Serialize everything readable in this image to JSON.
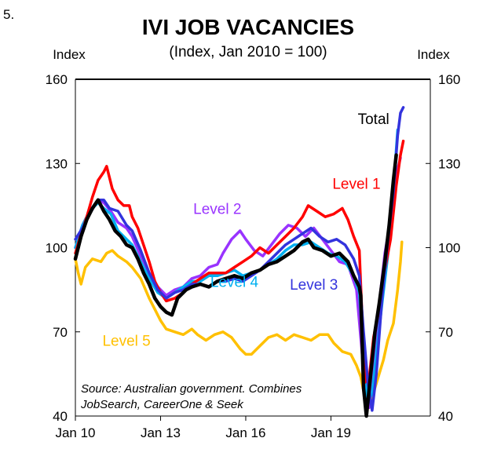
{
  "figure_number": "5.",
  "chart_data": {
    "type": "line",
    "title": "IVI JOB VACANCIES",
    "subtitle": "(Index, Jan 2010 = 100)",
    "ylabel_left": "Index",
    "ylabel_right": "Index",
    "ylim": [
      40,
      160
    ],
    "yticks": [
      40,
      70,
      100,
      130,
      160
    ],
    "ytick_labels": [
      "40",
      "70",
      "100",
      "130",
      "160"
    ],
    "xlim": [
      2010,
      2022.5
    ],
    "xticks": [
      2010,
      2013,
      2016,
      2019
    ],
    "xtick_labels": [
      "Jan 10",
      "Jan 13",
      "Jan 16",
      "Jan 19"
    ],
    "grid": false,
    "source": [
      "Source: Australian government. Combines",
      "JobSearch, CareerOne & Seek"
    ],
    "series": [
      {
        "name": "Level 5",
        "color": "#FFC000",
        "label": "Level 5",
        "points": [
          [
            2010.0,
            96
          ],
          [
            2010.1,
            91
          ],
          [
            2010.2,
            87
          ],
          [
            2010.35,
            93
          ],
          [
            2010.6,
            96
          ],
          [
            2010.9,
            95
          ],
          [
            2011.1,
            98
          ],
          [
            2011.3,
            99
          ],
          [
            2011.5,
            97
          ],
          [
            2011.8,
            95
          ],
          [
            2012.0,
            93
          ],
          [
            2012.3,
            89
          ],
          [
            2012.6,
            82
          ],
          [
            2012.8,
            78
          ],
          [
            2013.0,
            74
          ],
          [
            2013.2,
            71
          ],
          [
            2013.5,
            70
          ],
          [
            2013.8,
            69
          ],
          [
            2014.1,
            71
          ],
          [
            2014.3,
            69
          ],
          [
            2014.6,
            67
          ],
          [
            2014.9,
            69
          ],
          [
            2015.2,
            70
          ],
          [
            2015.5,
            68
          ],
          [
            2015.8,
            64
          ],
          [
            2016.0,
            62
          ],
          [
            2016.2,
            62
          ],
          [
            2016.5,
            65
          ],
          [
            2016.8,
            68
          ],
          [
            2017.1,
            69
          ],
          [
            2017.4,
            67
          ],
          [
            2017.7,
            69
          ],
          [
            2018.0,
            68
          ],
          [
            2018.3,
            67
          ],
          [
            2018.6,
            69
          ],
          [
            2018.9,
            69
          ],
          [
            2019.1,
            66
          ],
          [
            2019.4,
            63
          ],
          [
            2019.7,
            62
          ],
          [
            2019.9,
            58
          ],
          [
            2020.05,
            54
          ],
          [
            2020.15,
            49
          ],
          [
            2020.25,
            44
          ],
          [
            2020.4,
            45
          ],
          [
            2020.55,
            50
          ],
          [
            2020.7,
            55
          ],
          [
            2020.85,
            60
          ],
          [
            2021.0,
            67
          ],
          [
            2021.2,
            73
          ],
          [
            2021.35,
            85
          ],
          [
            2021.45,
            95
          ],
          [
            2021.5,
            102
          ]
        ]
      },
      {
        "name": "Level 2",
        "color": "#9933FF",
        "label": "Level 2",
        "points": [
          [
            2010.0,
            100
          ],
          [
            2010.25,
            108
          ],
          [
            2010.5,
            113
          ],
          [
            2010.8,
            117
          ],
          [
            2011.0,
            116
          ],
          [
            2011.25,
            113
          ],
          [
            2011.5,
            109
          ],
          [
            2011.8,
            107
          ],
          [
            2012.0,
            104
          ],
          [
            2012.3,
            97
          ],
          [
            2012.6,
            91
          ],
          [
            2012.9,
            86
          ],
          [
            2013.2,
            83
          ],
          [
            2013.5,
            85
          ],
          [
            2013.8,
            86
          ],
          [
            2014.1,
            89
          ],
          [
            2014.4,
            90
          ],
          [
            2014.7,
            93
          ],
          [
            2015.0,
            94
          ],
          [
            2015.2,
            98
          ],
          [
            2015.5,
            103
          ],
          [
            2015.8,
            106
          ],
          [
            2016.0,
            103
          ],
          [
            2016.3,
            99
          ],
          [
            2016.6,
            97
          ],
          [
            2016.9,
            101
          ],
          [
            2017.2,
            105
          ],
          [
            2017.5,
            108
          ],
          [
            2017.8,
            107
          ],
          [
            2018.1,
            104
          ],
          [
            2018.4,
            107
          ],
          [
            2018.7,
            103
          ],
          [
            2019.0,
            99
          ],
          [
            2019.3,
            95
          ],
          [
            2019.6,
            94
          ],
          [
            2019.9,
            85
          ],
          [
            2020.1,
            62
          ],
          [
            2020.2,
            48
          ],
          [
            2020.35,
            43
          ],
          [
            2020.5,
            55
          ],
          [
            2020.7,
            80
          ],
          [
            2020.9,
            98
          ],
          [
            2021.1,
            110
          ],
          [
            2021.3,
            126
          ],
          [
            2021.45,
            132
          ]
        ]
      },
      {
        "name": "Level 4",
        "color": "#00B0F0",
        "label": "Level 4",
        "points": [
          [
            2010.0,
            100
          ],
          [
            2010.25,
            108
          ],
          [
            2010.5,
            113
          ],
          [
            2010.8,
            116
          ],
          [
            2011.0,
            114
          ],
          [
            2011.25,
            112
          ],
          [
            2011.5,
            106
          ],
          [
            2011.8,
            103
          ],
          [
            2012.0,
            101
          ],
          [
            2012.3,
            95
          ],
          [
            2012.6,
            89
          ],
          [
            2012.9,
            84
          ],
          [
            2013.2,
            82
          ],
          [
            2013.5,
            84
          ],
          [
            2013.8,
            86
          ],
          [
            2014.1,
            88
          ],
          [
            2014.4,
            88
          ],
          [
            2014.7,
            90
          ],
          [
            2015.0,
            90
          ],
          [
            2015.3,
            91
          ],
          [
            2015.6,
            92
          ],
          [
            2015.9,
            90
          ],
          [
            2016.2,
            91
          ],
          [
            2016.5,
            92
          ],
          [
            2016.8,
            94
          ],
          [
            2017.1,
            96
          ],
          [
            2017.4,
            99
          ],
          [
            2017.7,
            101
          ],
          [
            2018.0,
            101
          ],
          [
            2018.3,
            102
          ],
          [
            2018.6,
            100
          ],
          [
            2018.9,
            98
          ],
          [
            2019.2,
            97
          ],
          [
            2019.5,
            95
          ],
          [
            2019.8,
            90
          ],
          [
            2020.0,
            84
          ],
          [
            2020.15,
            62
          ],
          [
            2020.3,
            45
          ],
          [
            2020.45,
            48
          ],
          [
            2020.6,
            62
          ],
          [
            2020.8,
            80
          ],
          [
            2021.0,
            97
          ],
          [
            2021.15,
            112
          ],
          [
            2021.25,
            128
          ],
          [
            2021.35,
            142
          ]
        ]
      },
      {
        "name": "Level 1",
        "color": "#FF0000",
        "label": "Level 1",
        "points": [
          [
            2010.0,
            98
          ],
          [
            2010.2,
            105
          ],
          [
            2010.4,
            111
          ],
          [
            2010.6,
            118
          ],
          [
            2010.8,
            124
          ],
          [
            2011.0,
            127
          ],
          [
            2011.1,
            129
          ],
          [
            2011.3,
            121
          ],
          [
            2011.5,
            117
          ],
          [
            2011.7,
            115
          ],
          [
            2011.9,
            115
          ],
          [
            2012.0,
            111
          ],
          [
            2012.2,
            107
          ],
          [
            2012.4,
            101
          ],
          [
            2012.6,
            95
          ],
          [
            2012.8,
            88
          ],
          [
            2013.0,
            84
          ],
          [
            2013.2,
            81
          ],
          [
            2013.5,
            82
          ],
          [
            2013.8,
            84
          ],
          [
            2014.1,
            87
          ],
          [
            2014.4,
            89
          ],
          [
            2014.7,
            91
          ],
          [
            2015.0,
            91
          ],
          [
            2015.3,
            91
          ],
          [
            2015.6,
            93
          ],
          [
            2015.9,
            95
          ],
          [
            2016.2,
            97
          ],
          [
            2016.5,
            100
          ],
          [
            2016.8,
            98
          ],
          [
            2017.1,
            101
          ],
          [
            2017.4,
            104
          ],
          [
            2017.7,
            107
          ],
          [
            2018.0,
            111
          ],
          [
            2018.2,
            115
          ],
          [
            2018.5,
            113
          ],
          [
            2018.8,
            111
          ],
          [
            2019.1,
            112
          ],
          [
            2019.4,
            114
          ],
          [
            2019.6,
            110
          ],
          [
            2019.8,
            104
          ],
          [
            2020.0,
            99
          ],
          [
            2020.1,
            75
          ],
          [
            2020.2,
            52
          ],
          [
            2020.35,
            54
          ],
          [
            2020.5,
            68
          ],
          [
            2020.7,
            78
          ],
          [
            2020.9,
            92
          ],
          [
            2021.1,
            103
          ],
          [
            2021.3,
            122
          ],
          [
            2021.45,
            133
          ],
          [
            2021.55,
            138
          ]
        ]
      },
      {
        "name": "Level 3",
        "color": "#3333DD",
        "label": "Level 3",
        "points": [
          [
            2010.0,
            103
          ],
          [
            2010.25,
            107
          ],
          [
            2010.5,
            112
          ],
          [
            2010.8,
            117
          ],
          [
            2011.0,
            117
          ],
          [
            2011.2,
            114
          ],
          [
            2011.5,
            113
          ],
          [
            2011.8,
            108
          ],
          [
            2012.0,
            106
          ],
          [
            2012.3,
            99
          ],
          [
            2012.6,
            91
          ],
          [
            2012.9,
            85
          ],
          [
            2013.2,
            82
          ],
          [
            2013.5,
            84
          ],
          [
            2013.8,
            85
          ],
          [
            2014.1,
            87
          ],
          [
            2014.4,
            87
          ],
          [
            2014.7,
            86
          ],
          [
            2015.0,
            88
          ],
          [
            2015.3,
            88
          ],
          [
            2015.6,
            89
          ],
          [
            2015.9,
            88
          ],
          [
            2016.2,
            90
          ],
          [
            2016.5,
            92
          ],
          [
            2016.8,
            95
          ],
          [
            2017.1,
            98
          ],
          [
            2017.4,
            101
          ],
          [
            2017.7,
            103
          ],
          [
            2018.0,
            105
          ],
          [
            2018.3,
            107
          ],
          [
            2018.6,
            104
          ],
          [
            2018.9,
            102
          ],
          [
            2019.2,
            103
          ],
          [
            2019.5,
            101
          ],
          [
            2019.8,
            96
          ],
          [
            2020.0,
            90
          ],
          [
            2020.15,
            70
          ],
          [
            2020.3,
            52
          ],
          [
            2020.45,
            42
          ],
          [
            2020.6,
            55
          ],
          [
            2020.8,
            82
          ],
          [
            2021.0,
            102
          ],
          [
            2021.2,
            120
          ],
          [
            2021.35,
            140
          ],
          [
            2021.45,
            148
          ],
          [
            2021.55,
            150
          ]
        ]
      },
      {
        "name": "Total",
        "color": "#000000",
        "label": "Total",
        "points": [
          [
            2010.0,
            96
          ],
          [
            2010.2,
            104
          ],
          [
            2010.4,
            110
          ],
          [
            2010.6,
            114
          ],
          [
            2010.8,
            117
          ],
          [
            2011.0,
            113
          ],
          [
            2011.2,
            110
          ],
          [
            2011.4,
            106
          ],
          [
            2011.6,
            104
          ],
          [
            2011.8,
            101
          ],
          [
            2012.0,
            100
          ],
          [
            2012.2,
            96
          ],
          [
            2012.4,
            91
          ],
          [
            2012.6,
            87
          ],
          [
            2012.8,
            82
          ],
          [
            2013.0,
            79
          ],
          [
            2013.2,
            77
          ],
          [
            2013.4,
            76
          ],
          [
            2013.6,
            82
          ],
          [
            2013.9,
            85
          ],
          [
            2014.1,
            86
          ],
          [
            2014.4,
            87
          ],
          [
            2014.7,
            86
          ],
          [
            2015.0,
            88
          ],
          [
            2015.3,
            89
          ],
          [
            2015.6,
            90
          ],
          [
            2015.9,
            89
          ],
          [
            2016.2,
            91
          ],
          [
            2016.5,
            92
          ],
          [
            2016.8,
            94
          ],
          [
            2017.1,
            95
          ],
          [
            2017.4,
            97
          ],
          [
            2017.7,
            99
          ],
          [
            2018.0,
            102
          ],
          [
            2018.2,
            103
          ],
          [
            2018.4,
            100
          ],
          [
            2018.7,
            99
          ],
          [
            2019.0,
            97
          ],
          [
            2019.3,
            98
          ],
          [
            2019.6,
            95
          ],
          [
            2019.8,
            90
          ],
          [
            2020.0,
            86
          ],
          [
            2020.05,
            83
          ],
          [
            2020.15,
            50
          ],
          [
            2020.25,
            40
          ],
          [
            2020.4,
            55
          ],
          [
            2020.55,
            70
          ],
          [
            2020.7,
            80
          ],
          [
            2020.9,
            95
          ],
          [
            2021.05,
            108
          ],
          [
            2021.2,
            124
          ],
          [
            2021.3,
            133
          ]
        ]
      }
    ],
    "annotations": [
      {
        "text": "Total",
        "series": "Total",
        "x": 2020.5,
        "y": 144
      },
      {
        "text": "Level 1",
        "series": "Level 1",
        "x": 2019.9,
        "y": 121
      },
      {
        "text": "Level 2",
        "series": "Level 2",
        "x": 2015.0,
        "y": 112
      },
      {
        "text": "Level 4",
        "series": "Level 4",
        "x": 2015.6,
        "y": 86
      },
      {
        "text": "Level 3",
        "series": "Level 3",
        "x": 2018.4,
        "y": 85
      },
      {
        "text": "Level 5",
        "series": "Level 5",
        "x": 2011.8,
        "y": 65
      }
    ]
  }
}
